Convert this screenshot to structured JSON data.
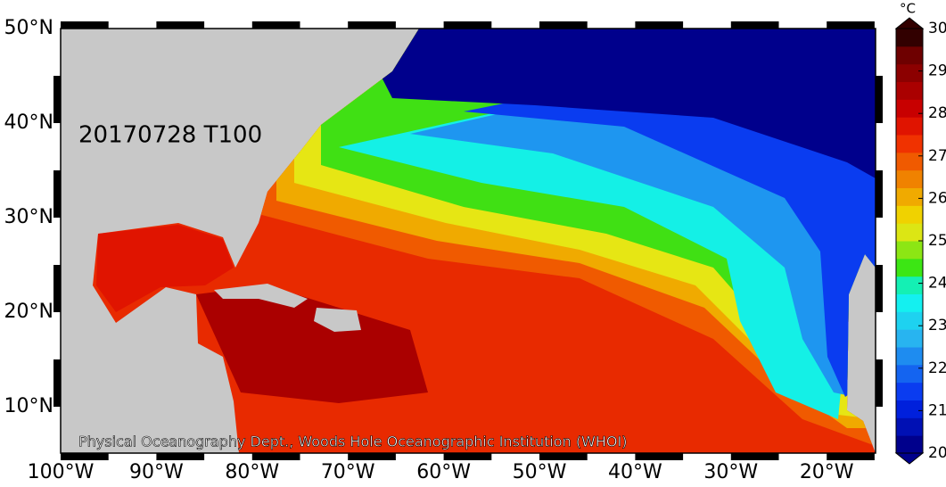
{
  "map": {
    "label": "20170728 T100",
    "credit": "Physical Oceanography Dept., Woods Hole Oceanographic Institution (WHOI)",
    "lon_ticks": [
      "100°W",
      "90°W",
      "80°W",
      "70°W",
      "60°W",
      "50°W",
      "40°W",
      "30°W",
      "20°W"
    ],
    "lat_ticks": [
      "50°N",
      "40°N",
      "30°N",
      "20°N",
      "10°N"
    ],
    "colorbar": {
      "unit": "°C",
      "ticks": [
        20,
        21,
        22,
        23,
        24,
        25,
        26,
        27,
        28,
        29,
        30
      ],
      "colors": [
        "#00008c",
        "#0010b4",
        "#0020dc",
        "#0a3cf0",
        "#1464f0",
        "#1e8cf0",
        "#28b4f0",
        "#1ed2f0",
        "#14f0f0",
        "#14f0b4",
        "#3ce614",
        "#8ce614",
        "#dce614",
        "#f0d200",
        "#f0aa00",
        "#f08200",
        "#f05a00",
        "#f03200",
        "#e01400",
        "#c80000",
        "#aa0000",
        "#8c0000",
        "#6e0000",
        "#320000"
      ]
    }
  }
}
